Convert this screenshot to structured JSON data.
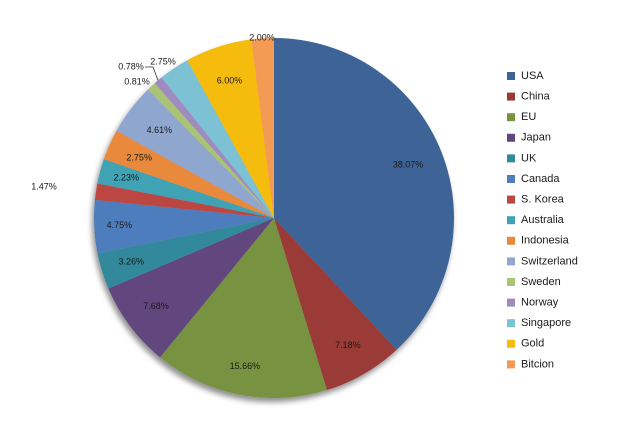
{
  "chart_data": {
    "type": "pie",
    "title": "",
    "legend_position": "right",
    "start_angle_deg": 0,
    "direction": "clockwise",
    "slices": [
      {
        "name": "USA",
        "value": 38.07,
        "label": "38.07%",
        "color": "#3E6497"
      },
      {
        "name": "China",
        "value": 7.18,
        "label": "7.18%",
        "color": "#9A3B38"
      },
      {
        "name": "EU",
        "value": 15.66,
        "label": "15.66%",
        "color": "#779241"
      },
      {
        "name": "Japan",
        "value": 7.68,
        "label": "7.68%",
        "color": "#62477E"
      },
      {
        "name": "UK",
        "value": 3.26,
        "label": "3.26%",
        "color": "#33899B"
      },
      {
        "name": "Canada",
        "value": 4.75,
        "label": "4.75%",
        "color": "#4E7DBC"
      },
      {
        "name": "S. Korea",
        "value": 1.47,
        "label": "1.47%",
        "color": "#BC4642"
      },
      {
        "name": "Australia",
        "value": 2.23,
        "label": "2.23%",
        "color": "#3FA2B5"
      },
      {
        "name": "Indonesia",
        "value": 2.75,
        "label": "2.75%",
        "color": "#E8893A"
      },
      {
        "name": "Switzerland",
        "value": 4.61,
        "label": "4.61%",
        "color": "#8FA6CF"
      },
      {
        "name": "Sweden",
        "value": 0.81,
        "label": "0.81%",
        "color": "#A9C475"
      },
      {
        "name": "Norway",
        "value": 0.78,
        "label": "0.78%",
        "color": "#A08BC0"
      },
      {
        "name": "Singapore",
        "value": 2.75,
        "label": "2.75%",
        "color": "#7CC1D4"
      },
      {
        "name": "Gold",
        "value": 6.0,
        "label": "6.00%",
        "color": "#F5BC0F"
      },
      {
        "name": "Bitcion",
        "value": 2.0,
        "label": "2.00%",
        "color": "#F39A55"
      }
    ]
  }
}
